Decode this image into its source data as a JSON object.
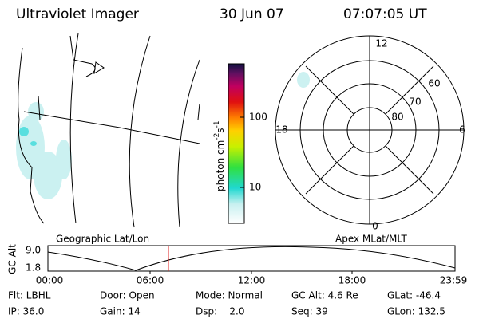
{
  "header": {
    "title": "Ultraviolet Imager",
    "date": "30 Jun 07",
    "time": "07:07:05 UT"
  },
  "colorbar": {
    "unit": "photon cm",
    "exp1": "-2",
    "unit2": "s",
    "exp2": "-1",
    "ticks": [
      "100",
      "10"
    ]
  },
  "polar": {
    "mlt_labels": [
      "12",
      "18",
      "6",
      "0"
    ],
    "lat_labels": [
      "60",
      "70",
      "80"
    ]
  },
  "timeline": {
    "left_label": "Geographic Lat/Lon",
    "right_label": "Apex MLat/MLT",
    "axis_label": "GC Alt",
    "y_labels": [
      "9.0",
      "1.8"
    ],
    "times": [
      "00:00",
      "06:00",
      "12:00",
      "18:00",
      "23:59"
    ]
  },
  "info": {
    "rows": [
      [
        "Flt: LBHL",
        "Door: Open",
        "Mode: Normal",
        "GC Alt: 4.6 Re",
        "GLat: -46.4"
      ],
      [
        "IP: 36.0",
        "Gain: 14",
        "Dsp:    2.0",
        "Seq: 39",
        "GLon: 132.5"
      ]
    ]
  }
}
